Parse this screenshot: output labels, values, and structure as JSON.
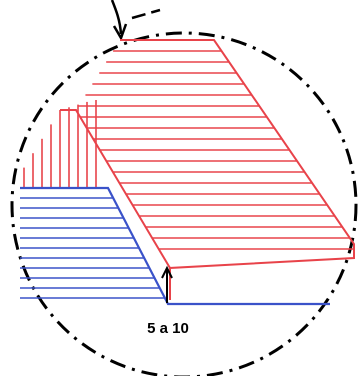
{
  "diagram": {
    "dimension_label": "5 a 10",
    "colors": {
      "red_hatch": "#e8434a",
      "blue_hatch": "#3a52c9",
      "outline": "#000000",
      "background": "#ffffff"
    }
  }
}
